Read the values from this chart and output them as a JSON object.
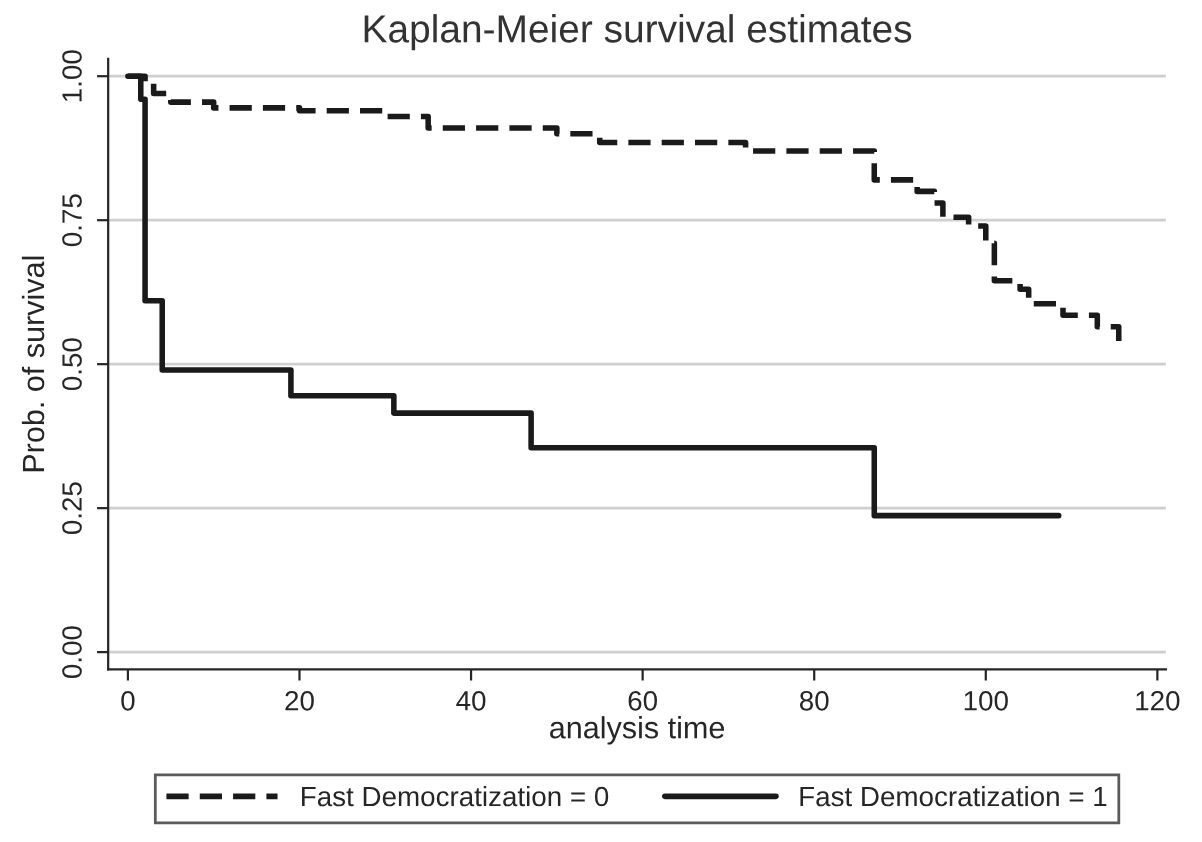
{
  "chart_data": {
    "type": "step",
    "title": "Kaplan-Meier survival estimates",
    "xlabel": "analysis time",
    "ylabel": "Prob. of survival",
    "series": [
      {
        "name": "Fast Democratization = 0",
        "color": "#1a1a1a",
        "line_style": "dashed",
        "x": [
          0,
          2,
          3,
          5,
          10,
          20,
          30,
          35,
          50,
          55,
          72,
          87,
          92,
          94,
          95,
          98,
          100,
          101,
          104,
          105,
          109,
          113,
          115.5,
          116
        ],
        "values": [
          1.0,
          0.99,
          0.97,
          0.955,
          0.945,
          0.94,
          0.93,
          0.91,
          0.9,
          0.885,
          0.87,
          0.82,
          0.8,
          0.78,
          0.755,
          0.74,
          0.71,
          0.645,
          0.63,
          0.605,
          0.585,
          0.565,
          0.54,
          0.54
        ]
      },
      {
        "name": "Fast Democratization = 1",
        "color": "#1a1a1a",
        "line_style": "solid",
        "x": [
          0,
          1.5,
          2,
          4,
          19,
          31,
          47,
          87,
          108.5
        ],
        "values": [
          1.0,
          0.96,
          0.61,
          0.49,
          0.445,
          0.415,
          0.355,
          0.237,
          0.237
        ]
      }
    ],
    "xlim": [
      -2.3,
      121
    ],
    "ylim": [
      -0.03,
      1.03
    ],
    "xticks": [
      0,
      20,
      40,
      60,
      80,
      100,
      120
    ],
    "yticks": [
      {
        "value": 0,
        "label": "0.00"
      },
      {
        "value": 0.25,
        "label": "0.25"
      },
      {
        "value": 0.5,
        "label": "0.50"
      },
      {
        "value": 0.75,
        "label": "0.75"
      },
      {
        "value": 1,
        "label": "1.00"
      }
    ],
    "grid": "y",
    "legend": "bottom"
  }
}
